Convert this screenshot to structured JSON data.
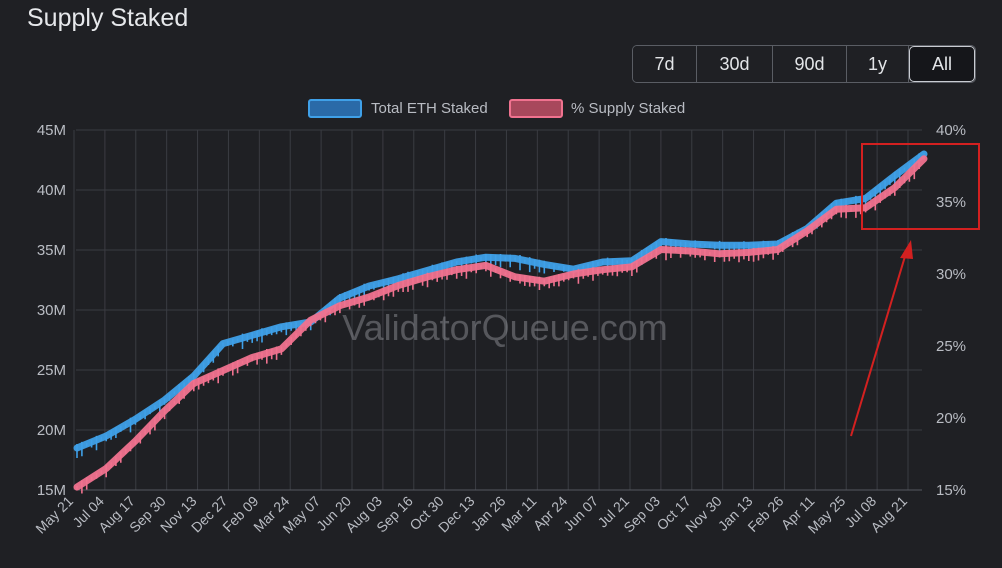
{
  "header": {
    "title": "Supply Staked"
  },
  "range_buttons": [
    {
      "label": "7d",
      "active": false
    },
    {
      "label": "30d",
      "active": false
    },
    {
      "label": "90d",
      "active": false
    },
    {
      "label": "1y",
      "active": false
    },
    {
      "label": "All",
      "active": true
    }
  ],
  "watermark": "ValidatorQueue.com",
  "colors": {
    "background": "#1f2024",
    "grid": "#3a3c42",
    "series_total": "#3fa0e8",
    "series_pct": "#f0728f",
    "annotation": "#d32020"
  },
  "chart_data": {
    "type": "line",
    "x_ticks": [
      "May 21",
      "Jul 04",
      "Aug 17",
      "Sep 30",
      "Nov 13",
      "Dec 27",
      "Feb 09",
      "Mar 24",
      "May 07",
      "Jun 20",
      "Aug 03",
      "Sep 16",
      "Oct 30",
      "Dec 13",
      "Jan 26",
      "Mar 11",
      "Apr 24",
      "Jun 07",
      "Jul 21",
      "Sep 03",
      "Oct 17",
      "Nov 30",
      "Jan 13",
      "Feb 26",
      "Apr 11",
      "May 25",
      "Jul 08",
      "Aug 21"
    ],
    "y_left": {
      "ticks": [
        "15M",
        "20M",
        "25M",
        "30M",
        "35M",
        "40M",
        "45M"
      ],
      "range": [
        15,
        45
      ]
    },
    "y_right": {
      "ticks": [
        "15%",
        "20%",
        "25%",
        "30%",
        "35%",
        "40%"
      ],
      "range": [
        15,
        40
      ]
    },
    "series": [
      {
        "name": "Total ETH Staked",
        "axis": "left",
        "color": "#3fa0e8",
        "values": [
          18.5,
          19.5,
          20.9,
          22.5,
          24.5,
          27.2,
          27.9,
          28.6,
          29.0,
          31.0,
          32.0,
          32.6,
          33.3,
          34.0,
          34.4,
          34.3,
          33.8,
          33.4,
          34.0,
          34.1,
          35.7,
          35.5,
          35.4,
          35.4,
          35.5,
          36.8,
          38.9,
          39.3,
          41.2,
          43.0
        ]
      },
      {
        "name": "% Supply Staked",
        "axis": "right",
        "color": "#f0728f",
        "values": [
          15.2,
          16.5,
          18.4,
          20.5,
          22.4,
          23.3,
          24.2,
          24.8,
          26.8,
          27.8,
          28.4,
          29.2,
          29.8,
          30.3,
          30.6,
          29.8,
          29.5,
          30.0,
          30.3,
          30.5,
          31.7,
          31.6,
          31.4,
          31.5,
          31.7,
          33.0,
          34.5,
          34.6,
          36.0,
          38.0
        ]
      }
    ],
    "legend_position": "top",
    "grid": true
  }
}
